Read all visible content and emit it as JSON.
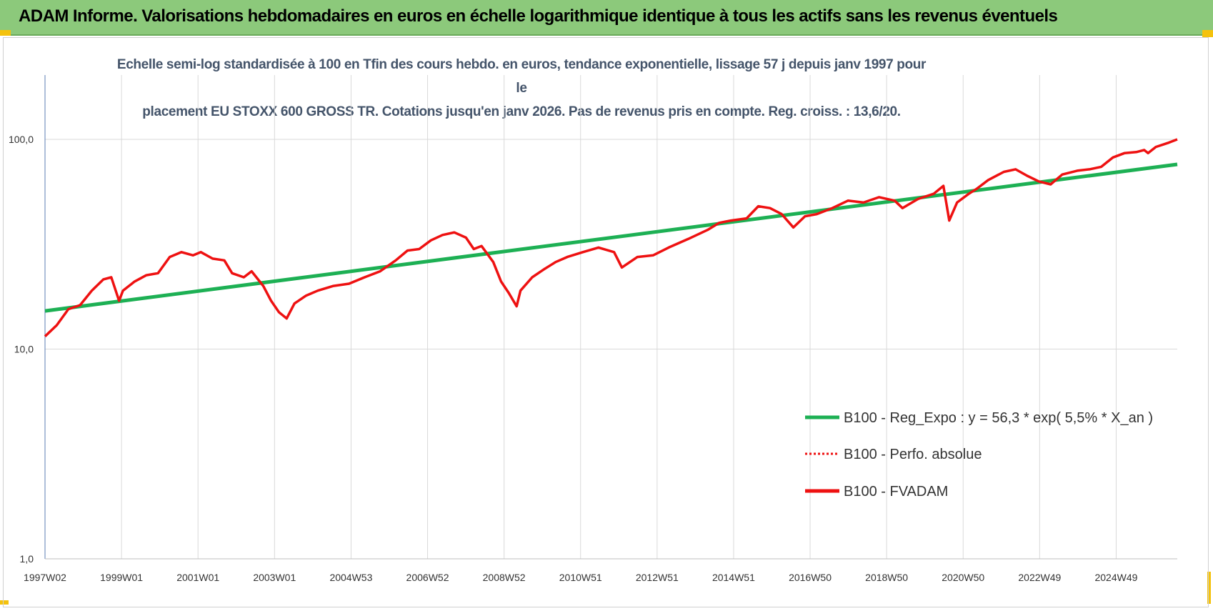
{
  "header": {
    "title": "ADAM Informe. Valorisations hebdomadaires en euros en échelle logarithmique identique à tous les actifs sans les revenus éventuels"
  },
  "colors": {
    "header_bg": "#8cc97b",
    "corner": "#f4c20d",
    "trend": "#1db054",
    "series": "#ee1111",
    "grid": "#d9d9d9"
  },
  "chart_data": {
    "type": "line",
    "title": "Echelle semi-log standardisée à 100 en Tfin des cours hebdo. en euros, tendance exponentielle, lissage 57 j depuis janv 1997 pour le placement EU STOXX 600 GROSS TR. Cotations jusqu'en janv 2026. Pas de revenus pris en compte. Reg. croiss. : 13,6/20.",
    "title_lines": [
      "Echelle semi-log standardisée à 100 en Tfin des cours hebdo. en euros, tendance exponentielle, lissage 57 j depuis janv 1997 pour le",
      "placement EU STOXX 600 GROSS TR. Cotations jusqu'en janv 2026. Pas de revenus pris en compte. Reg. croiss. : 13,6/20."
    ],
    "y_scale": "log",
    "ylim": [
      1,
      200
    ],
    "y_ticks": [
      "1,0",
      "10,0",
      "100,0"
    ],
    "x_ticks": [
      "1997W02",
      "1999W01",
      "2001W01",
      "2003W01",
      "2004W53",
      "2006W52",
      "2008W52",
      "2010W51",
      "2012W51",
      "2014W51",
      "2016W50",
      "2018W50",
      "2020W50",
      "2022W49",
      "2024W49"
    ],
    "x_range": [
      1997.0,
      2026.05
    ],
    "grid": true,
    "legend_position": "bottom-right",
    "series": [
      {
        "name": "B100 - Reg_Expo : y = 56,3 * exp( 5,5% *  X_an )",
        "style": "solid-green",
        "x": [
          1997.0,
          2026.05
        ],
        "y": [
          15.2,
          76.0
        ]
      },
      {
        "name": "B100 - Perfo. absolue",
        "style": "dotted-red",
        "x": [],
        "y": []
      },
      {
        "name": "B100 - FVADAM",
        "style": "solid-red",
        "x": [
          1997.0,
          1997.3,
          1997.6,
          1997.9,
          1998.2,
          1998.5,
          1998.7,
          1998.9,
          1999.0,
          1999.3,
          1999.6,
          1999.9,
          2000.2,
          2000.5,
          2000.8,
          2001.0,
          2001.3,
          2001.6,
          2001.8,
          2002.1,
          2002.3,
          2002.6,
          2002.8,
          2003.0,
          2003.2,
          2003.4,
          2003.7,
          2004.0,
          2004.4,
          2004.8,
          2005.2,
          2005.6,
          2006.0,
          2006.3,
          2006.6,
          2006.9,
          2007.2,
          2007.5,
          2007.8,
          2008.0,
          2008.2,
          2008.5,
          2008.7,
          2008.9,
          2009.1,
          2009.2,
          2009.5,
          2009.8,
          2010.1,
          2010.4,
          2010.8,
          2011.2,
          2011.6,
          2011.8,
          2012.2,
          2012.6,
          2013.0,
          2013.5,
          2014.0,
          2014.3,
          2014.6,
          2015.0,
          2015.3,
          2015.6,
          2015.9,
          2016.2,
          2016.5,
          2016.8,
          2017.2,
          2017.6,
          2018.0,
          2018.4,
          2018.8,
          2019.0,
          2019.4,
          2019.8,
          2020.05,
          2020.2,
          2020.4,
          2020.7,
          2020.9,
          2021.2,
          2021.6,
          2021.9,
          2022.2,
          2022.5,
          2022.8,
          2023.1,
          2023.5,
          2023.8,
          2024.1,
          2024.4,
          2024.7,
          2025.0,
          2025.2,
          2025.3,
          2025.5,
          2025.8,
          2026.05
        ],
        "y": [
          11.5,
          13.0,
          15.5,
          16.2,
          19.0,
          21.5,
          22.0,
          17.0,
          19.0,
          21.0,
          22.5,
          23.0,
          27.5,
          29.0,
          28.0,
          29.0,
          27.0,
          26.5,
          23.0,
          22.0,
          23.5,
          20.0,
          17.0,
          15.0,
          14.0,
          16.5,
          18.0,
          19.0,
          20.0,
          20.5,
          22.0,
          23.5,
          26.5,
          29.5,
          30.0,
          33.0,
          35.0,
          36.0,
          34.0,
          30.0,
          31.0,
          26.0,
          21.0,
          18.5,
          16.0,
          19.0,
          22.0,
          24.0,
          26.0,
          27.5,
          29.0,
          30.5,
          29.0,
          24.5,
          27.5,
          28.0,
          30.5,
          33.5,
          37.0,
          40.0,
          41.0,
          42.0,
          48.0,
          47.0,
          44.0,
          38.0,
          43.0,
          44.0,
          47.0,
          51.0,
          50.0,
          53.0,
          51.0,
          47.0,
          52.0,
          55.0,
          60.0,
          41.0,
          50.0,
          55.0,
          58.0,
          64.0,
          70.0,
          72.0,
          67.0,
          63.0,
          61.0,
          68.0,
          71.0,
          72.0,
          74.0,
          82.0,
          86.0,
          87.0,
          89.0,
          86.0,
          92.0,
          96.0,
          100.0
        ]
      }
    ]
  }
}
